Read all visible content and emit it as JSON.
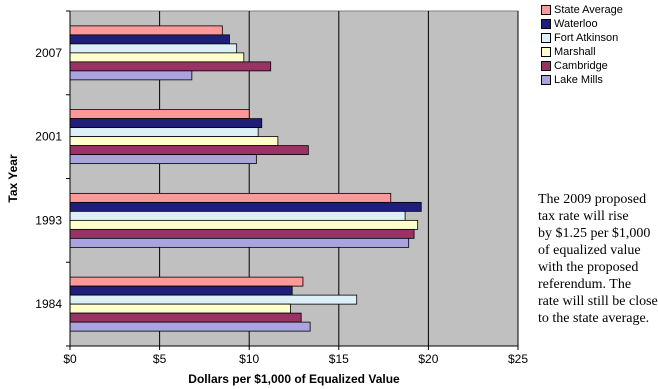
{
  "chart_data": {
    "type": "bar",
    "orientation": "horizontal",
    "categories": [
      "2007",
      "2001",
      "1993",
      "1984"
    ],
    "series": [
      {
        "name": "State Average",
        "color": "#ff9999",
        "values": [
          8.5,
          10.0,
          17.9,
          13.0
        ]
      },
      {
        "name": "Waterloo",
        "color": "#1f1f7a",
        "values": [
          8.9,
          10.7,
          19.6,
          12.4
        ]
      },
      {
        "name": "Fort Atkinson",
        "color": "#ddf0f8",
        "values": [
          9.3,
          10.5,
          18.7,
          16.0
        ]
      },
      {
        "name": "Marshall",
        "color": "#ffffcc",
        "values": [
          9.7,
          11.6,
          19.4,
          12.3
        ]
      },
      {
        "name": "Cambridge",
        "color": "#993366",
        "values": [
          11.2,
          13.3,
          19.2,
          12.9
        ]
      },
      {
        "name": "Lake Mills",
        "color": "#a9a4dd",
        "values": [
          6.8,
          10.4,
          18.9,
          13.4
        ]
      }
    ],
    "xlabel": "Dollars per $1,000 of Equalized Value",
    "ylabel": "Tax Year",
    "xlim": [
      0,
      25
    ],
    "xticks": [
      0,
      5,
      10,
      15,
      20,
      25
    ],
    "xtick_labels": [
      "$0",
      "$5",
      "$10",
      "$15",
      "$20",
      "$25"
    ],
    "plot_background": "#c0c0c0",
    "grid": "vertical",
    "legend_position": "right"
  },
  "note_lines": [
    "The 2009 proposed",
    "tax rate will rise",
    "by $1.25 per $1,000",
    "of equalized value",
    "with the proposed",
    "referendum. The",
    "rate will still be close",
    "to the state average."
  ]
}
